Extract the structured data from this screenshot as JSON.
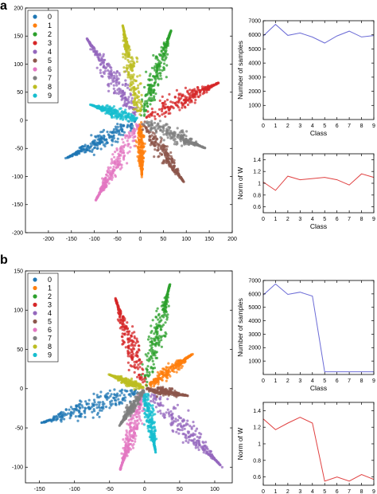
{
  "panel_labels": [
    "a",
    "b"
  ],
  "colors": {
    "classes": [
      "#1f77b4",
      "#ff7f0e",
      "#2ca02c",
      "#d62728",
      "#9467bd",
      "#8c564b",
      "#e377c2",
      "#7f7f7f",
      "#bcbd22",
      "#17becf"
    ],
    "samples_line": "#6b6bd6",
    "norm_line": "#e04040"
  },
  "chart_data": [
    {
      "id": "a-scatter",
      "panel": "a",
      "type": "scatter",
      "title": "",
      "xlabel": "",
      "ylabel": "",
      "xlim": [
        -250,
        200
      ],
      "ylim": [
        -200,
        200
      ],
      "xticks": [
        -200,
        -150,
        -100,
        -50,
        0,
        50,
        100,
        150,
        200
      ],
      "yticks": [
        -200,
        -150,
        -100,
        -50,
        0,
        50,
        100,
        150,
        200
      ],
      "legend": {
        "placement": "top-left",
        "entries": [
          "0",
          "1",
          "2",
          "3",
          "4",
          "5",
          "6",
          "7",
          "8",
          "9"
        ]
      },
      "grid": false,
      "clusters": [
        {
          "class": "0",
          "tip": [
            -148,
            -62
          ]
        },
        {
          "class": "1",
          "tip": [
            3,
            -90
          ]
        },
        {
          "class": "2",
          "tip": [
            62,
            148
          ]
        },
        {
          "class": "3",
          "tip": [
            158,
            62
          ]
        },
        {
          "class": "4",
          "tip": [
            -108,
            135
          ]
        },
        {
          "class": "5",
          "tip": [
            88,
            -102
          ]
        },
        {
          "class": "6",
          "tip": [
            -90,
            -132
          ]
        },
        {
          "class": "7",
          "tip": [
            128,
            -45
          ]
        },
        {
          "class": "8",
          "tip": [
            -35,
            155
          ]
        },
        {
          "class": "9",
          "tip": [
            -98,
            25
          ]
        }
      ]
    },
    {
      "id": "a-samples",
      "panel": "a",
      "type": "line",
      "title": "",
      "xlabel": "Class",
      "ylabel": "Number of samples",
      "x": [
        0,
        1,
        2,
        3,
        4,
        5,
        6,
        7,
        8,
        9
      ],
      "values": [
        5920,
        6740,
        5960,
        6130,
        5840,
        5420,
        5920,
        6260,
        5850,
        5950
      ],
      "xlim": [
        0,
        9
      ],
      "ylim": [
        0,
        7000
      ],
      "xticks": [
        0,
        1,
        2,
        3,
        4,
        5,
        6,
        7,
        8,
        9
      ],
      "yticks": [
        1000,
        2000,
        3000,
        4000,
        5000,
        6000,
        7000
      ],
      "grid": false
    },
    {
      "id": "a-norm",
      "panel": "a",
      "type": "line",
      "title": "",
      "xlabel": "Class",
      "ylabel": "Norm of W",
      "x": [
        0,
        1,
        2,
        3,
        4,
        5,
        6,
        7,
        8,
        9
      ],
      "values": [
        1.02,
        0.88,
        1.12,
        1.06,
        1.08,
        1.1,
        1.06,
        0.97,
        1.16,
        1.1
      ],
      "xlim": [
        0,
        9
      ],
      "ylim": [
        0.5,
        1.5
      ],
      "xticks": [
        0,
        1,
        2,
        3,
        4,
        5,
        6,
        7,
        8,
        9
      ],
      "yticks": [
        0.6,
        0.8,
        1.0,
        1.2,
        1.4
      ],
      "grid": false
    },
    {
      "id": "b-scatter",
      "panel": "b",
      "type": "scatter",
      "title": "",
      "xlabel": "",
      "ylabel": "",
      "xlim": [
        -170,
        125
      ],
      "ylim": [
        -120,
        150
      ],
      "xticks": [
        -150,
        -100,
        -50,
        0,
        50,
        100
      ],
      "yticks": [
        -100,
        -50,
        0,
        50,
        100,
        150
      ],
      "legend": {
        "placement": "top-left",
        "entries": [
          "0",
          "1",
          "2",
          "3",
          "4",
          "5",
          "6",
          "7",
          "8",
          "9"
        ]
      },
      "grid": false,
      "clusters": [
        {
          "class": "0",
          "tip": [
            -135,
            -40
          ]
        },
        {
          "class": "1",
          "tip": [
            62,
            40
          ]
        },
        {
          "class": "2",
          "tip": [
            33,
            122
          ]
        },
        {
          "class": "3",
          "tip": [
            -38,
            105
          ]
        },
        {
          "class": "4",
          "tip": [
            100,
            -90
          ]
        },
        {
          "class": "5",
          "tip": [
            55,
            -8
          ]
        },
        {
          "class": "6",
          "tip": [
            -32,
            -95
          ]
        },
        {
          "class": "7",
          "tip": [
            -32,
            -42
          ]
        },
        {
          "class": "8",
          "tip": [
            -45,
            16
          ]
        },
        {
          "class": "9",
          "tip": [
            14,
            -72
          ]
        }
      ]
    },
    {
      "id": "b-samples",
      "panel": "b",
      "type": "line",
      "title": "",
      "xlabel": "Class",
      "ylabel": "Number of samples",
      "x": [
        0,
        1,
        2,
        3,
        4,
        5,
        6,
        7,
        8,
        9
      ],
      "values": [
        5920,
        6740,
        5960,
        6130,
        5840,
        200,
        200,
        200,
        200,
        200
      ],
      "xlim": [
        0,
        9
      ],
      "ylim": [
        0,
        7000
      ],
      "xticks": [
        0,
        1,
        2,
        3,
        4,
        5,
        6,
        7,
        8,
        9
      ],
      "yticks": [
        1000,
        2000,
        3000,
        4000,
        5000,
        6000,
        7000
      ],
      "grid": false
    },
    {
      "id": "b-norm",
      "panel": "b",
      "type": "line",
      "title": "",
      "xlabel": "Class",
      "ylabel": "Norm of W",
      "x": [
        0,
        1,
        2,
        3,
        4,
        5,
        6,
        7,
        8,
        9
      ],
      "values": [
        1.3,
        1.17,
        1.25,
        1.32,
        1.25,
        0.55,
        0.6,
        0.55,
        0.63,
        0.57
      ],
      "xlim": [
        0,
        9
      ],
      "ylim": [
        0.5,
        1.5
      ],
      "xticks": [
        0,
        1,
        2,
        3,
        4,
        5,
        6,
        7,
        8,
        9
      ],
      "yticks": [
        0.6,
        0.8,
        1.0,
        1.2,
        1.4
      ],
      "grid": false
    }
  ]
}
